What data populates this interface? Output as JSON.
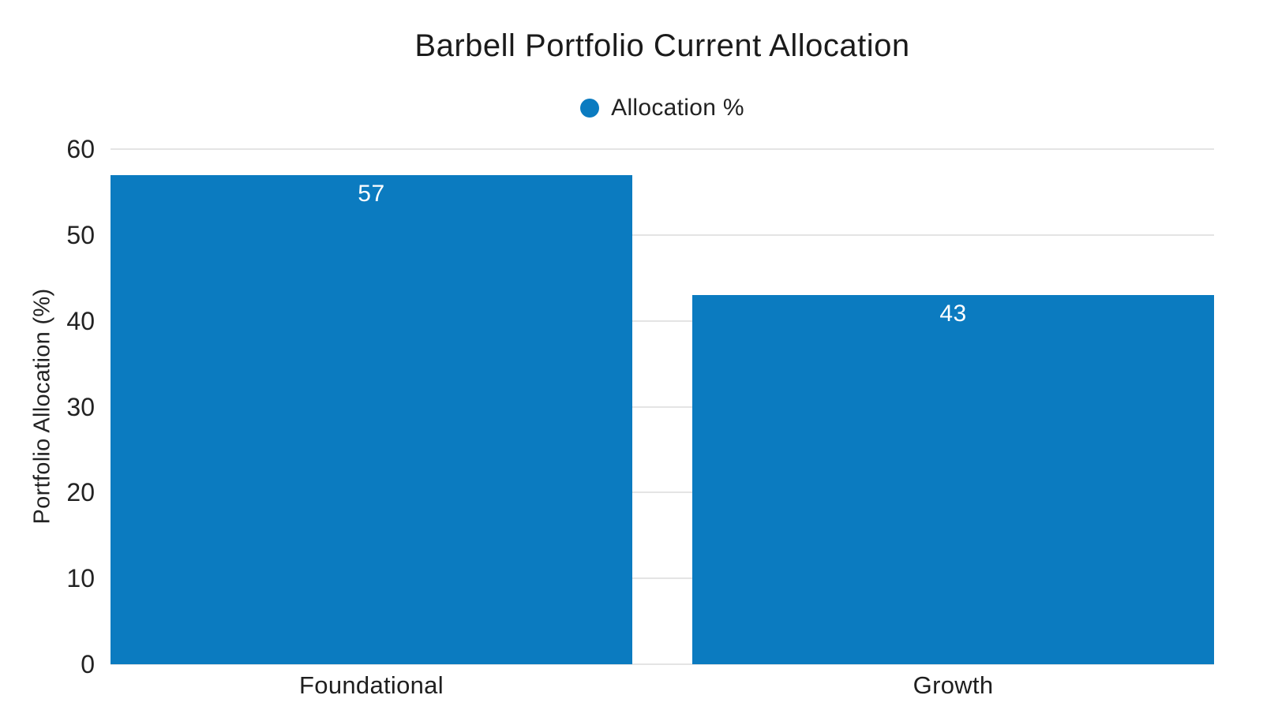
{
  "chart_data": {
    "type": "bar",
    "title": "Barbell Portfolio Current Allocation",
    "categories": [
      "Foundational",
      "Growth"
    ],
    "series": [
      {
        "name": "Allocation %",
        "values": [
          57,
          43
        ]
      }
    ],
    "xlabel": "",
    "ylabel": "Portfolio Allocation (%)",
    "ylim": [
      0,
      60
    ],
    "yticks": [
      0,
      10,
      20,
      30,
      40,
      50,
      60
    ],
    "grid": true,
    "legend_position": "top-center",
    "value_labels_position": "inside-top",
    "colors": {
      "bar": "#0b7bc0",
      "grid": "#e4e4e4",
      "text": "#222222",
      "title_text": "#1b1b1b",
      "value_label": "#ffffff"
    }
  }
}
